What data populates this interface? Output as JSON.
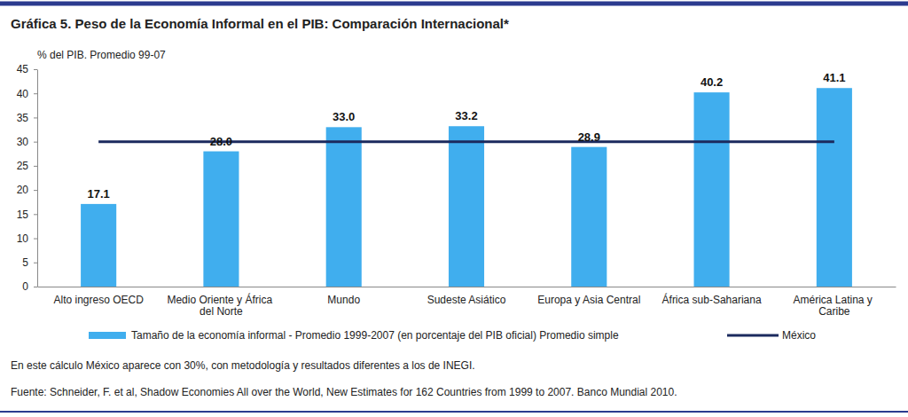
{
  "chart_data": {
    "type": "bar",
    "title": "Gráfica 5. Peso de la Economía Informal en el PIB: Comparación Internacional*",
    "ylabel": "% del PIB. Promedio 99-07",
    "categories": [
      "Alto ingreso OECD",
      "Medio Oriente y África del Norte",
      "Mundo",
      "Sudeste Asiático",
      "Europa y Asia Central",
      "África sub-Sahariana",
      "América Latina y Caribe"
    ],
    "series": [
      {
        "name": "Tamaño de la economía informal - Promedio 1999-2007 (en porcentaje del PIB oficial) Promedio simple",
        "type": "bar",
        "color": "#40aeee",
        "values": [
          17.1,
          28.0,
          33.0,
          33.2,
          28.9,
          40.2,
          41.1
        ],
        "value_labels": [
          "17.1",
          "28.0",
          "33.0",
          "33.2",
          "28.9",
          "40.2",
          "41.1"
        ],
        "data_labels": true
      },
      {
        "name": "México",
        "type": "line",
        "color": "#1b2a5e",
        "values": [
          30,
          30,
          30,
          30,
          30,
          30,
          30
        ]
      }
    ],
    "ylim": [
      0,
      45
    ],
    "yticks": [
      0,
      5,
      10,
      15,
      20,
      25,
      30,
      35,
      40,
      45
    ],
    "grid": false,
    "legend": "bottom",
    "notes": [
      "En este cálculo México aparece con 30%, con metodología y resultados diferentes a los de INEGI.",
      "Fuente: Schneider, F. et al, Shadow Economies All over the World, New Estimates for 162 Countries from 1999 to 2007. Banco Mundial 2010."
    ]
  }
}
